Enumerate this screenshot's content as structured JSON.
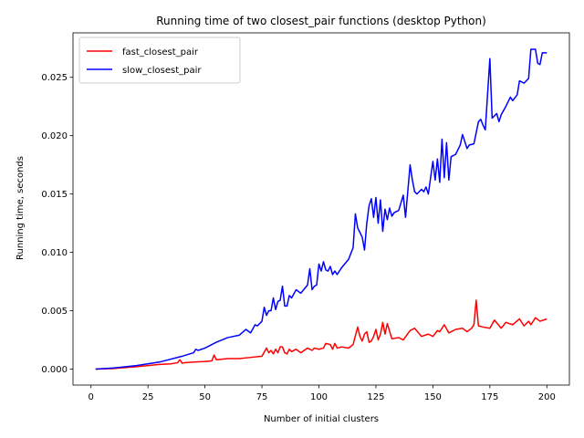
{
  "chart_data": {
    "type": "line",
    "title": "Running time of two closest_pair functions (desktop Python)",
    "xlabel": "Number of initial clusters",
    "ylabel": "Running time, seconds",
    "xlim": [
      -7.9,
      209.9
    ],
    "ylim": [
      -0.00137,
      0.02881
    ],
    "xticks": [
      0,
      25,
      50,
      75,
      100,
      125,
      150,
      175,
      200
    ],
    "xtick_labels": [
      "0",
      "25",
      "50",
      "75",
      "100",
      "125",
      "150",
      "175",
      "200"
    ],
    "yticks": [
      0.0,
      0.005,
      0.01,
      0.015,
      0.02,
      0.025
    ],
    "ytick_labels": [
      "0.000",
      "0.005",
      "0.010",
      "0.015",
      "0.020",
      "0.025"
    ],
    "grid": false,
    "legend_position": "top-left",
    "series": [
      {
        "name": "fast_closest_pair",
        "color": "#ff0000",
        "x": [
          2,
          10,
          20,
          25,
          30,
          35,
          38,
          39,
          40,
          41,
          45,
          50,
          53,
          54,
          55,
          60,
          65,
          70,
          75,
          77,
          78,
          79,
          80,
          81,
          82,
          83,
          84,
          85,
          86,
          87,
          88,
          90,
          92,
          95,
          97,
          98,
          100,
          102,
          103,
          105,
          106,
          107,
          108,
          110,
          113,
          115,
          117,
          118,
          119,
          120,
          121,
          122,
          123,
          124,
          125,
          126,
          127,
          128,
          129,
          130,
          132,
          135,
          137,
          140,
          142,
          145,
          148,
          150,
          152,
          153,
          155,
          157,
          160,
          163,
          165,
          167,
          168,
          169,
          170,
          172,
          175,
          177,
          180,
          182,
          185,
          188,
          190,
          192,
          193,
          195,
          197,
          200
        ],
        "y": [
          0.0,
          5e-05,
          0.0002,
          0.0003,
          0.0004,
          0.00045,
          0.00055,
          0.0008,
          0.0005,
          0.00055,
          0.0006,
          0.00065,
          0.0007,
          0.0012,
          0.0008,
          0.0009,
          0.0009,
          0.001,
          0.0011,
          0.0018,
          0.0014,
          0.0016,
          0.0013,
          0.0017,
          0.0014,
          0.0019,
          0.0019,
          0.0014,
          0.0013,
          0.0017,
          0.0015,
          0.0017,
          0.0014,
          0.0018,
          0.0016,
          0.0018,
          0.0017,
          0.0018,
          0.0022,
          0.0021,
          0.0017,
          0.0022,
          0.0018,
          0.0019,
          0.0018,
          0.0021,
          0.0036,
          0.0028,
          0.0024,
          0.003,
          0.0032,
          0.0023,
          0.0024,
          0.0028,
          0.0034,
          0.0025,
          0.003,
          0.004,
          0.003,
          0.0039,
          0.0026,
          0.0027,
          0.0025,
          0.0033,
          0.0035,
          0.0028,
          0.003,
          0.0028,
          0.0033,
          0.0032,
          0.0038,
          0.0031,
          0.0034,
          0.0035,
          0.0032,
          0.0035,
          0.0038,
          0.0059,
          0.0037,
          0.0036,
          0.0035,
          0.0042,
          0.0035,
          0.004,
          0.0038,
          0.0043,
          0.0037,
          0.0041,
          0.0038,
          0.0044,
          0.0041,
          0.0043
        ]
      },
      {
        "name": "slow_closest_pair",
        "color": "#0000ff",
        "x": [
          2,
          10,
          20,
          30,
          40,
          45,
          46,
          47,
          50,
          55,
          60,
          65,
          68,
          70,
          72,
          73,
          75,
          76,
          77,
          78,
          79,
          80,
          81,
          82,
          83,
          84,
          85,
          86,
          87,
          88,
          90,
          92,
          95,
          96,
          97,
          98,
          99,
          100,
          101,
          102,
          103,
          104,
          105,
          106,
          107,
          108,
          110,
          113,
          115,
          116,
          117,
          118,
          119,
          120,
          121,
          122,
          123,
          124,
          125,
          126,
          127,
          128,
          129,
          130,
          131,
          132,
          133,
          135,
          137,
          138,
          140,
          141,
          142,
          143,
          145,
          146,
          147,
          148,
          150,
          151,
          152,
          153,
          154,
          155,
          156,
          157,
          158,
          160,
          162,
          163,
          165,
          166,
          168,
          170,
          171,
          172,
          173,
          175,
          176,
          178,
          179,
          180,
          182,
          184,
          185,
          187,
          188,
          190,
          192,
          193,
          195,
          196,
          197,
          198,
          200
        ],
        "y": [
          0.0,
          0.0001,
          0.0003,
          0.0006,
          0.0011,
          0.0014,
          0.0017,
          0.0016,
          0.0018,
          0.0023,
          0.0027,
          0.0029,
          0.0034,
          0.0031,
          0.0038,
          0.0037,
          0.0041,
          0.0053,
          0.0046,
          0.005,
          0.005,
          0.0061,
          0.0051,
          0.0058,
          0.0059,
          0.0071,
          0.0054,
          0.0054,
          0.0063,
          0.0061,
          0.0068,
          0.0065,
          0.0072,
          0.0086,
          0.0068,
          0.0071,
          0.0072,
          0.009,
          0.0084,
          0.0092,
          0.0085,
          0.0084,
          0.0088,
          0.0081,
          0.0084,
          0.0081,
          0.0087,
          0.0094,
          0.0104,
          0.0133,
          0.0121,
          0.0117,
          0.0113,
          0.0102,
          0.0125,
          0.014,
          0.0146,
          0.013,
          0.0147,
          0.0125,
          0.0145,
          0.0118,
          0.0137,
          0.0128,
          0.0138,
          0.0131,
          0.0134,
          0.0136,
          0.0149,
          0.013,
          0.0175,
          0.0162,
          0.0152,
          0.015,
          0.0154,
          0.0152,
          0.0156,
          0.015,
          0.0178,
          0.0162,
          0.018,
          0.016,
          0.0197,
          0.0164,
          0.0194,
          0.0162,
          0.0182,
          0.0184,
          0.0192,
          0.0201,
          0.0189,
          0.0192,
          0.0193,
          0.0212,
          0.0214,
          0.0209,
          0.0205,
          0.0266,
          0.0215,
          0.0219,
          0.0212,
          0.0218,
          0.0225,
          0.0233,
          0.023,
          0.0235,
          0.0247,
          0.0245,
          0.0249,
          0.0274,
          0.0274,
          0.0262,
          0.0261,
          0.0271,
          0.0271
        ]
      }
    ]
  }
}
